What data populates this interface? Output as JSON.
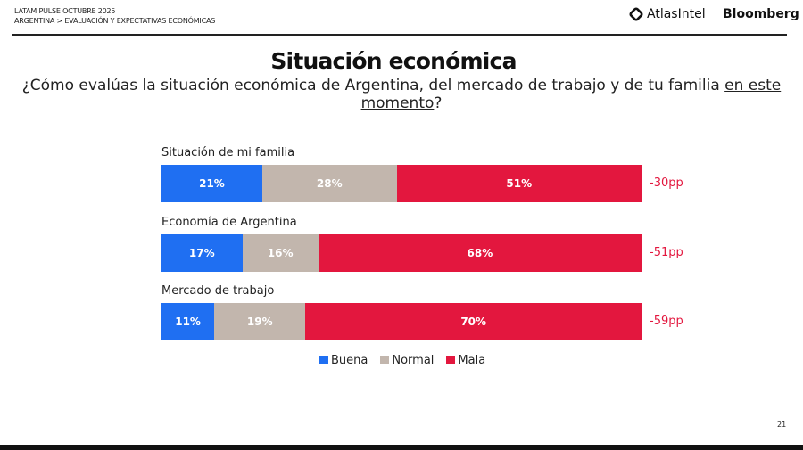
{
  "header": {
    "line1": "LATAM PULSE OCTUBRE 2025",
    "line2": "ARGENTINA > EVALUACIÓN Y EXPECTATIVAS ECONÓMICAS",
    "logo1": "AtlasIntel",
    "logo2": "Bloomberg"
  },
  "page_number": "21",
  "chart_data": {
    "type": "bar",
    "orientation": "horizontal-stacked-100",
    "title": "Situación económica",
    "subtitle_part1": "¿Cómo evalúas la situación económica de Argentina, del mercado de trabajo y de tu familia ",
    "subtitle_underlined": "en este momento",
    "subtitle_end": "?",
    "categories": [
      "Situación de mi familia",
      "Economía de Argentina",
      "Mercado de trabajo"
    ],
    "series": [
      {
        "name": "Buena",
        "color": "#1f6ff2",
        "values": [
          21,
          17,
          11
        ]
      },
      {
        "name": "Normal",
        "color": "#c2b6ad",
        "values": [
          28,
          16,
          19
        ]
      },
      {
        "name": "Mala",
        "color": "#e3173e",
        "values": [
          51,
          68,
          70
        ]
      }
    ],
    "net_labels": [
      "-30pp",
      "-51pp",
      "-59pp"
    ],
    "legend_position": "bottom",
    "xlim": [
      0,
      100
    ]
  }
}
